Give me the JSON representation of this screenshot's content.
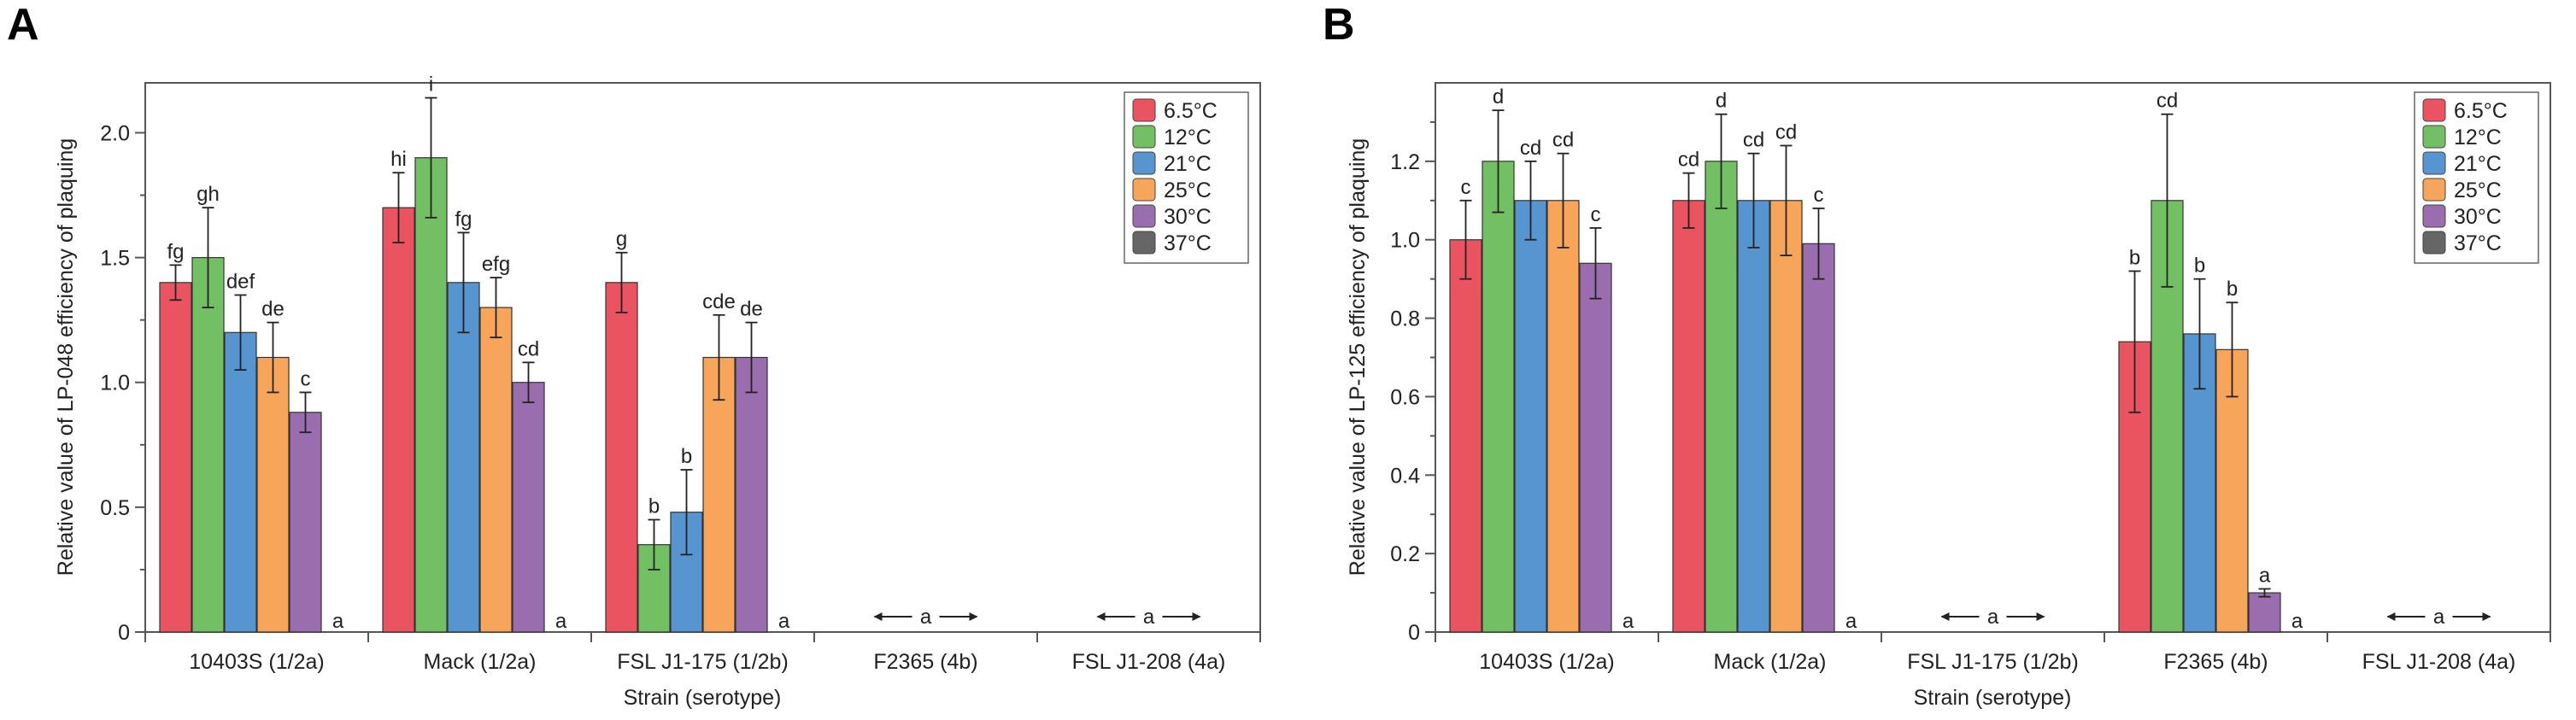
{
  "figure": {
    "legend_entries": [
      {
        "label": "6.5°C",
        "color": "#ea5461"
      },
      {
        "label": "12°C",
        "color": "#73c064"
      },
      {
        "label": "21°C",
        "color": "#5795d1"
      },
      {
        "label": "25°C",
        "color": "#f6a55b"
      },
      {
        "label": "30°C",
        "color": "#9a6dae"
      },
      {
        "label": "37°C",
        "color": "#666666"
      }
    ]
  },
  "chart_data": [
    {
      "panel": "A",
      "type": "bar",
      "xlabel": "Strain (serotype)",
      "ylabel": "Relative value of LP-048 efficiency of plaquing",
      "ylim": [
        0,
        2.2
      ],
      "yticks": [
        "0",
        "0.5",
        "1.0",
        "1.5",
        "2.0"
      ],
      "legend_position": "top-right",
      "categories": [
        "10403S (1/2a)",
        "Mack (1/2a)",
        "FSL J1-175 (1/2b)",
        "F2365 (4b)",
        "FSL J1-208 (4a)"
      ],
      "series": [
        {
          "name": "6.5°C",
          "values": [
            1.4,
            1.7,
            1.4,
            0,
            0
          ],
          "errors": [
            0.07,
            0.14,
            0.12,
            0,
            0
          ],
          "letters": [
            "fg",
            "hi",
            "g",
            "",
            ""
          ]
        },
        {
          "name": "12°C",
          "values": [
            1.5,
            1.9,
            0.35,
            0,
            0
          ],
          "errors": [
            0.2,
            0.24,
            0.1,
            0,
            0
          ],
          "letters": [
            "gh",
            "i",
            "b",
            "",
            ""
          ]
        },
        {
          "name": "21°C",
          "values": [
            1.2,
            1.4,
            0.48,
            0,
            0
          ],
          "errors": [
            0.15,
            0.2,
            0.17,
            0,
            0
          ],
          "letters": [
            "def",
            "fg",
            "b",
            "",
            ""
          ]
        },
        {
          "name": "25°C",
          "values": [
            1.1,
            1.3,
            1.1,
            0,
            0
          ],
          "errors": [
            0.14,
            0.12,
            0.17,
            0,
            0
          ],
          "letters": [
            "de",
            "efg",
            "cde",
            "",
            ""
          ]
        },
        {
          "name": "30°C",
          "values": [
            0.88,
            1.0,
            1.1,
            0,
            0
          ],
          "errors": [
            0.08,
            0.08,
            0.14,
            0,
            0
          ],
          "letters": [
            "c",
            "cd",
            "de",
            "",
            ""
          ]
        },
        {
          "name": "37°C",
          "values": [
            0,
            0,
            0,
            0,
            0
          ],
          "errors": [
            0,
            0,
            0,
            0,
            0
          ],
          "letters": [
            "a",
            "a",
            "a",
            "",
            ""
          ]
        }
      ],
      "group_annotations": [
        {
          "category_index": 3,
          "text": "a"
        },
        {
          "category_index": 4,
          "text": "a"
        }
      ]
    },
    {
      "panel": "B",
      "type": "bar",
      "xlabel": "Strain (serotype)",
      "ylabel": "Relative value of LP-125 efficiency of plaquing",
      "ylim": [
        0,
        1.4
      ],
      "yticks": [
        "0",
        "0.2",
        "0.4",
        "0.6",
        "0.8",
        "1.0",
        "1.2"
      ],
      "legend_position": "top-right",
      "categories": [
        "10403S (1/2a)",
        "Mack (1/2a)",
        "FSL J1-175 (1/2b)",
        "F2365 (4b)",
        "FSL J1-208 (4a)"
      ],
      "series": [
        {
          "name": "6.5°C",
          "values": [
            1.0,
            1.1,
            0,
            0.74,
            0
          ],
          "errors": [
            0.1,
            0.07,
            0,
            0.18,
            0
          ],
          "letters": [
            "c",
            "cd",
            "",
            "b",
            ""
          ]
        },
        {
          "name": "12°C",
          "values": [
            1.2,
            1.2,
            0,
            1.1,
            0
          ],
          "errors": [
            0.13,
            0.12,
            0,
            0.22,
            0
          ],
          "letters": [
            "d",
            "d",
            "",
            "cd",
            ""
          ]
        },
        {
          "name": "21°C",
          "values": [
            1.1,
            1.1,
            0,
            0.76,
            0
          ],
          "errors": [
            0.1,
            0.12,
            0,
            0.14,
            0
          ],
          "letters": [
            "cd",
            "cd",
            "",
            "b",
            ""
          ]
        },
        {
          "name": "25°C",
          "values": [
            1.1,
            1.1,
            0,
            0.72,
            0
          ],
          "errors": [
            0.12,
            0.14,
            0,
            0.12,
            0
          ],
          "letters": [
            "cd",
            "cd",
            "",
            "b",
            ""
          ]
        },
        {
          "name": "30°C",
          "values": [
            0.94,
            0.99,
            0,
            0.1,
            0
          ],
          "errors": [
            0.09,
            0.09,
            0,
            0.01,
            0
          ],
          "letters": [
            "c",
            "c",
            "",
            "a",
            ""
          ]
        },
        {
          "name": "37°C",
          "values": [
            0,
            0,
            0,
            0,
            0
          ],
          "errors": [
            0,
            0,
            0,
            0,
            0
          ],
          "letters": [
            "a",
            "a",
            "",
            "a",
            ""
          ]
        }
      ],
      "group_annotations": [
        {
          "category_index": 2,
          "text": "a"
        },
        {
          "category_index": 4,
          "text": "a"
        }
      ]
    }
  ]
}
